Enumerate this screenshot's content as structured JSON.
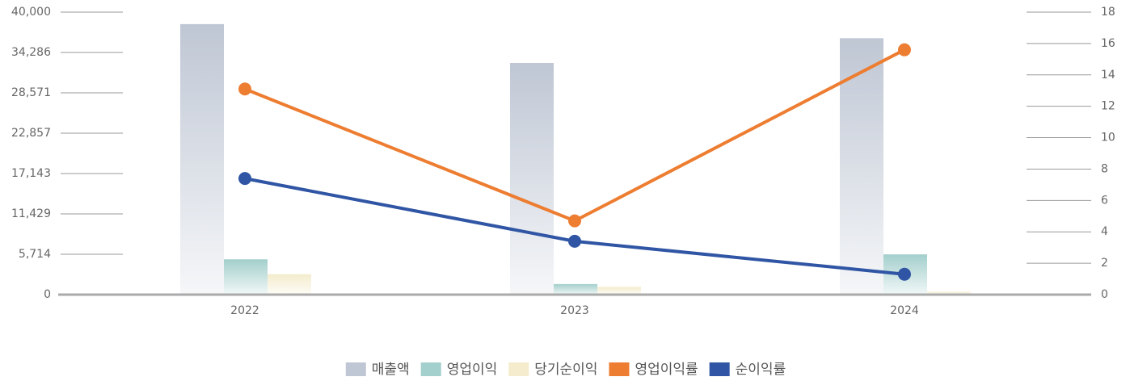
{
  "chart_data": {
    "type": "bar-line",
    "categories": [
      "2022",
      "2023",
      "2024"
    ],
    "series": [
      {
        "name": "매출액",
        "color": "#bfc7d4",
        "values": [
          38300,
          32800,
          36300
        ]
      },
      {
        "name": "영업이익",
        "color": "#a3cfcc",
        "values": [
          5000,
          1500,
          5700
        ]
      },
      {
        "name": "당기순이익",
        "color": "#f4eccd",
        "values": [
          2900,
          1100,
          400
        ]
      },
      {
        "name": "영업이익률",
        "color": "#ed7d31",
        "values": [
          13.1,
          4.7,
          15.6
        ],
        "axis": "y2"
      },
      {
        "name": "순이익률",
        "color": "#2f55a4",
        "values": [
          7.4,
          3.4,
          1.3
        ],
        "axis": "y2"
      }
    ],
    "ylim": [
      0,
      40000
    ],
    "yticks": [
      0,
      {
        "value": 5714,
        "label": "5,714"
      },
      {
        "value": 11429,
        "label": "11,429"
      },
      {
        "value": 17143,
        "label": "17,143"
      },
      {
        "value": 22857,
        "label": "22,857"
      },
      {
        "value": 28571,
        "label": "28,571"
      },
      {
        "value": 34286,
        "label": "34,286"
      },
      {
        "value": 40000,
        "label": "40,000"
      }
    ],
    "y2lim": [
      0,
      18
    ],
    "y2ticks": [
      0,
      2,
      4,
      6,
      8,
      10,
      12,
      14,
      16,
      18
    ],
    "legend": "bottom"
  }
}
